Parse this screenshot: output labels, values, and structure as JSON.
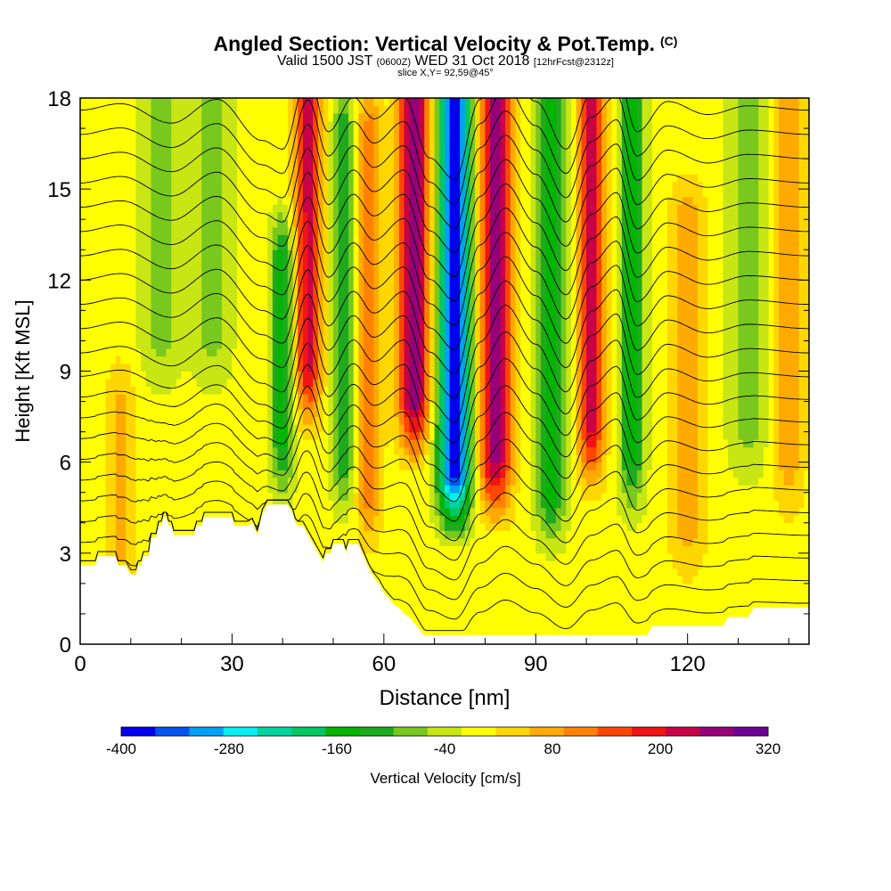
{
  "title": {
    "main": "Angled Section: Vertical Velocity & Pot.Temp.",
    "main_suffix": "(C)",
    "valid_prefix": "Valid 1500 JST",
    "valid_utc": "(0600Z)",
    "valid_date": "WED 31 Oct 2018",
    "forecast": "[12hrFcst@2312z]",
    "slice": "slice X,Y= 92,59@45°"
  },
  "chart_data": {
    "type": "heatmap",
    "xlabel": "Distance [nm]",
    "ylabel": "Height [Kft MSL]",
    "xlim": [
      0,
      144
    ],
    "ylim": [
      0,
      18
    ],
    "xticks": [
      0,
      30,
      60,
      90,
      120
    ],
    "yticks": [
      0,
      3,
      6,
      9,
      12,
      15,
      18
    ],
    "colorbar": {
      "label": "Vertical Velocity [cm/s]",
      "ticks": [
        -400,
        -280,
        -160,
        -40,
        80,
        200,
        320
      ],
      "levels": [
        -400,
        -360,
        -320,
        -280,
        -240,
        -200,
        -160,
        -120,
        -80,
        -40,
        0,
        40,
        80,
        120,
        160,
        200,
        240,
        280,
        320
      ],
      "colors": [
        "#0000ee",
        "#0055f0",
        "#00a0f5",
        "#00f0f0",
        "#00d2a0",
        "#00c864",
        "#00b400",
        "#1eaa1e",
        "#78c81e",
        "#c8e614",
        "#ffff00",
        "#ffd700",
        "#ffaa00",
        "#ff8200",
        "#ff4600",
        "#f01414",
        "#c80046",
        "#960078",
        "#6e0096"
      ]
    },
    "velocity_features": [
      {
        "x": 74,
        "center_w": -400,
        "width_nm": 3.2,
        "top_kft": 18,
        "bottom_kft": 3.5
      },
      {
        "x": 66,
        "center_w": 300,
        "width_nm": 3.0,
        "top_kft": 18,
        "bottom_kft": 6
      },
      {
        "x": 82,
        "center_w": 280,
        "width_nm": 3.2,
        "top_kft": 18,
        "bottom_kft": 4
      },
      {
        "x": 101,
        "center_w": 230,
        "width_nm": 2.6,
        "top_kft": 18,
        "bottom_kft": 5
      },
      {
        "x": 93,
        "center_w": -170,
        "width_nm": 3.0,
        "top_kft": 18,
        "bottom_kft": 3
      },
      {
        "x": 109,
        "center_w": -150,
        "width_nm": 2.6,
        "top_kft": 18,
        "bottom_kft": 4
      },
      {
        "x": 45,
        "center_w": 230,
        "width_nm": 2.6,
        "top_kft": 18,
        "bottom_kft": 7
      },
      {
        "x": 40,
        "center_w": -150,
        "width_nm": 2.4,
        "top_kft": 13,
        "bottom_kft": 4.5
      },
      {
        "x": 52,
        "center_w": -140,
        "width_nm": 2.2,
        "top_kft": 17,
        "bottom_kft": 4
      },
      {
        "x": 57,
        "center_w": 130,
        "width_nm": 2.4,
        "top_kft": 17,
        "bottom_kft": 3
      },
      {
        "x": 16,
        "center_w": -80,
        "width_nm": 4.0,
        "top_kft": 18,
        "bottom_kft": 8
      },
      {
        "x": 26,
        "center_w": -80,
        "width_nm": 4.0,
        "top_kft": 18,
        "bottom_kft": 8
      },
      {
        "x": 132,
        "center_w": -80,
        "width_nm": 4.0,
        "top_kft": 18,
        "bottom_kft": 5
      },
      {
        "x": 120,
        "center_w": 90,
        "width_nm": 3.5,
        "top_kft": 14,
        "bottom_kft": 2
      },
      {
        "x": 8,
        "center_w": 70,
        "width_nm": 3.0,
        "top_kft": 8,
        "bottom_kft": 1
      },
      {
        "x": 140,
        "center_w": 90,
        "width_nm": 3.0,
        "top_kft": 18,
        "bottom_kft": 4
      }
    ],
    "terrain_kft": [
      [
        0,
        2.6
      ],
      [
        3,
        2.6
      ],
      [
        3.5,
        2.9
      ],
      [
        7,
        2.9
      ],
      [
        7.5,
        2.6
      ],
      [
        9,
        2.6
      ],
      [
        10,
        2.3
      ],
      [
        11,
        2.3
      ],
      [
        11.5,
        2.6
      ],
      [
        12,
        2.6
      ],
      [
        12.5,
        2.9
      ],
      [
        13.5,
        2.9
      ],
      [
        14,
        3.5
      ],
      [
        15,
        3.5
      ],
      [
        15.5,
        3.9
      ],
      [
        16,
        3.9
      ],
      [
        16.5,
        4.2
      ],
      [
        17,
        4.2
      ],
      [
        17.5,
        3.9
      ],
      [
        18,
        3.9
      ],
      [
        18.5,
        3.6
      ],
      [
        22.5,
        3.6
      ],
      [
        23,
        3.9
      ],
      [
        24,
        3.9
      ],
      [
        24.5,
        4.2
      ],
      [
        30,
        4.2
      ],
      [
        30.5,
        3.9
      ],
      [
        33,
        3.9
      ],
      [
        34,
        4.0
      ],
      [
        35,
        3.6
      ],
      [
        36,
        4.3
      ],
      [
        37,
        4.6
      ],
      [
        41,
        4.6
      ],
      [
        42,
        4.3
      ],
      [
        42.5,
        4.0
      ],
      [
        43,
        3.9
      ],
      [
        44,
        3.9
      ],
      [
        45,
        3.6
      ],
      [
        46,
        3.3
      ],
      [
        47,
        3.0
      ],
      [
        48,
        2.7
      ],
      [
        48.5,
        3.0
      ],
      [
        49.5,
        3.0
      ],
      [
        50,
        3.3
      ],
      [
        52,
        3.3
      ],
      [
        52.5,
        3.0
      ],
      [
        53,
        3.3
      ],
      [
        55,
        3.3
      ],
      [
        56,
        2.9
      ],
      [
        57,
        2.5
      ],
      [
        58,
        2.2
      ],
      [
        59,
        2.0
      ],
      [
        60,
        1.7
      ],
      [
        61,
        1.5
      ],
      [
        62,
        1.3
      ],
      [
        63,
        1.2
      ],
      [
        64,
        1.0
      ],
      [
        65,
        0.9
      ],
      [
        66,
        0.7
      ],
      [
        67,
        0.5
      ],
      [
        68,
        0.3
      ],
      [
        69,
        0.3
      ],
      [
        70,
        0.3
      ],
      [
        112,
        0.3
      ],
      [
        113,
        0.6
      ],
      [
        117,
        0.6
      ],
      [
        122,
        0.6
      ],
      [
        127,
        0.6
      ],
      [
        128,
        0.9
      ],
      [
        132,
        0.9
      ],
      [
        133,
        1.2
      ],
      [
        144,
        1.2
      ]
    ],
    "theta_contours": {
      "label": "Pot.Temp. (C)",
      "levels_from_surface": 22,
      "wave_nodes": [
        {
          "x": 0,
          "w": 0
        },
        {
          "x": 8,
          "w": 0.3
        },
        {
          "x": 18,
          "w": -0.6
        },
        {
          "x": 27,
          "w": 0.5
        },
        {
          "x": 36,
          "w": -1.4
        },
        {
          "x": 40,
          "w": -1.8
        },
        {
          "x": 45,
          "w": 1.6
        },
        {
          "x": 49,
          "w": -1.0
        },
        {
          "x": 54,
          "w": 0.6
        },
        {
          "x": 58,
          "w": -0.4
        },
        {
          "x": 64,
          "w": 0.6
        },
        {
          "x": 69,
          "w": -2.2
        },
        {
          "x": 74,
          "w": -3.2
        },
        {
          "x": 79,
          "w": 0.5
        },
        {
          "x": 84,
          "w": 2.2
        },
        {
          "x": 90,
          "w": 0.4
        },
        {
          "x": 96,
          "w": -1.8
        },
        {
          "x": 101,
          "w": 0.8
        },
        {
          "x": 106,
          "w": 1.8
        },
        {
          "x": 110,
          "w": -1.0
        },
        {
          "x": 116,
          "w": 0.4
        },
        {
          "x": 124,
          "w": -0.2
        },
        {
          "x": 132,
          "w": 0.2
        },
        {
          "x": 144,
          "w": 0
        }
      ]
    }
  }
}
